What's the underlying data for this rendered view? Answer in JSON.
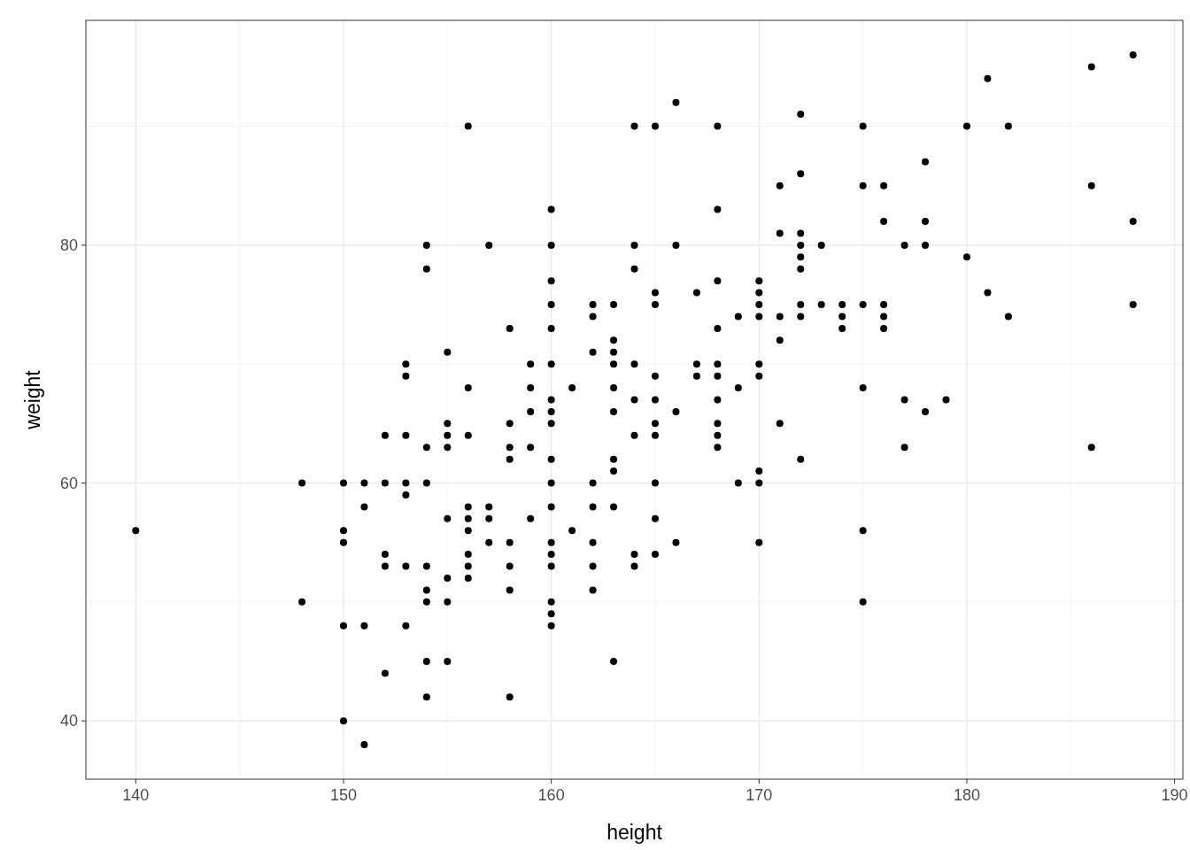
{
  "chart_data": {
    "type": "scatter",
    "xlabel": "height",
    "ylabel": "weight",
    "xlim": [
      137.6,
      190.4
    ],
    "ylim": [
      35.1,
      98.9
    ],
    "xticks": [
      140,
      150,
      160,
      170,
      180,
      190
    ],
    "yticks": [
      40,
      60,
      80
    ],
    "grid": true,
    "marker": "circle",
    "series": [
      {
        "color": "#000000",
        "x": [
          140,
          148,
          148,
          150,
          150,
          150,
          150,
          150,
          151,
          151,
          151,
          151,
          152,
          152,
          152,
          152,
          152,
          153,
          153,
          153,
          153,
          153,
          153,
          153,
          154,
          154,
          154,
          154,
          154,
          154,
          154,
          154,
          154,
          155,
          155,
          155,
          155,
          155,
          155,
          155,
          155,
          156,
          156,
          156,
          156,
          156,
          156,
          156,
          156,
          156,
          157,
          157,
          157,
          157,
          158,
          158,
          158,
          158,
          158,
          158,
          158,
          158,
          159,
          159,
          159,
          159,
          159,
          160,
          160,
          160,
          160,
          160,
          160,
          160,
          160,
          160,
          160,
          160,
          160,
          160,
          160,
          160,
          160,
          160,
          160,
          161,
          161,
          162,
          162,
          162,
          162,
          162,
          162,
          162,
          162,
          163,
          163,
          163,
          163,
          163,
          163,
          163,
          163,
          163,
          163,
          164,
          164,
          164,
          164,
          164,
          164,
          164,
          164,
          165,
          165,
          165,
          165,
          165,
          165,
          165,
          165,
          165,
          165,
          166,
          166,
          166,
          166,
          167,
          167,
          167,
          168,
          168,
          168,
          168,
          168,
          168,
          168,
          168,
          168,
          168,
          169,
          169,
          169,
          170,
          170,
          170,
          170,
          170,
          170,
          170,
          170,
          170,
          171,
          171,
          171,
          171,
          171,
          172,
          172,
          172,
          172,
          172,
          172,
          172,
          172,
          172,
          173,
          173,
          174,
          174,
          174,
          175,
          175,
          175,
          175,
          175,
          175,
          176,
          176,
          176,
          176,
          176,
          177,
          177,
          177,
          178,
          178,
          178,
          178,
          179,
          180,
          180,
          181,
          181,
          182,
          182,
          186,
          186,
          186,
          188,
          188,
          188
        ],
        "values": [
          56,
          60,
          50,
          60,
          56,
          55,
          48,
          40,
          60,
          58,
          48,
          38,
          64,
          60,
          54,
          53,
          44,
          70,
          69,
          64,
          60,
          59,
          53,
          48,
          80,
          78,
          63,
          60,
          53,
          51,
          50,
          45,
          42,
          71,
          65,
          64,
          63,
          57,
          52,
          50,
          45,
          90,
          68,
          64,
          58,
          57,
          56,
          54,
          53,
          52,
          80,
          58,
          57,
          55,
          73,
          65,
          63,
          62,
          55,
          53,
          51,
          42,
          70,
          68,
          66,
          63,
          57,
          83,
          80,
          77,
          75,
          73,
          70,
          67,
          66,
          65,
          62,
          60,
          58,
          55,
          54,
          53,
          50,
          49,
          48,
          68,
          56,
          75,
          74,
          71,
          60,
          58,
          55,
          53,
          51,
          75,
          72,
          71,
          70,
          68,
          66,
          62,
          61,
          58,
          45,
          90,
          80,
          78,
          70,
          67,
          64,
          54,
          53,
          90,
          76,
          75,
          69,
          67,
          65,
          64,
          60,
          57,
          54,
          92,
          80,
          66,
          55,
          76,
          70,
          69,
          90,
          83,
          77,
          73,
          70,
          69,
          67,
          65,
          64,
          63,
          74,
          68,
          60,
          77,
          76,
          75,
          74,
          70,
          69,
          61,
          60,
          55,
          85,
          81,
          74,
          72,
          65,
          91,
          86,
          81,
          80,
          79,
          78,
          75,
          74,
          62,
          80,
          75,
          75,
          74,
          73,
          90,
          85,
          75,
          68,
          56,
          50,
          85,
          82,
          75,
          74,
          73,
          80,
          67,
          63,
          87,
          82,
          80,
          66,
          67,
          90,
          79,
          94,
          76,
          90,
          74,
          95,
          85,
          63,
          96,
          82,
          75
        ]
      }
    ]
  }
}
